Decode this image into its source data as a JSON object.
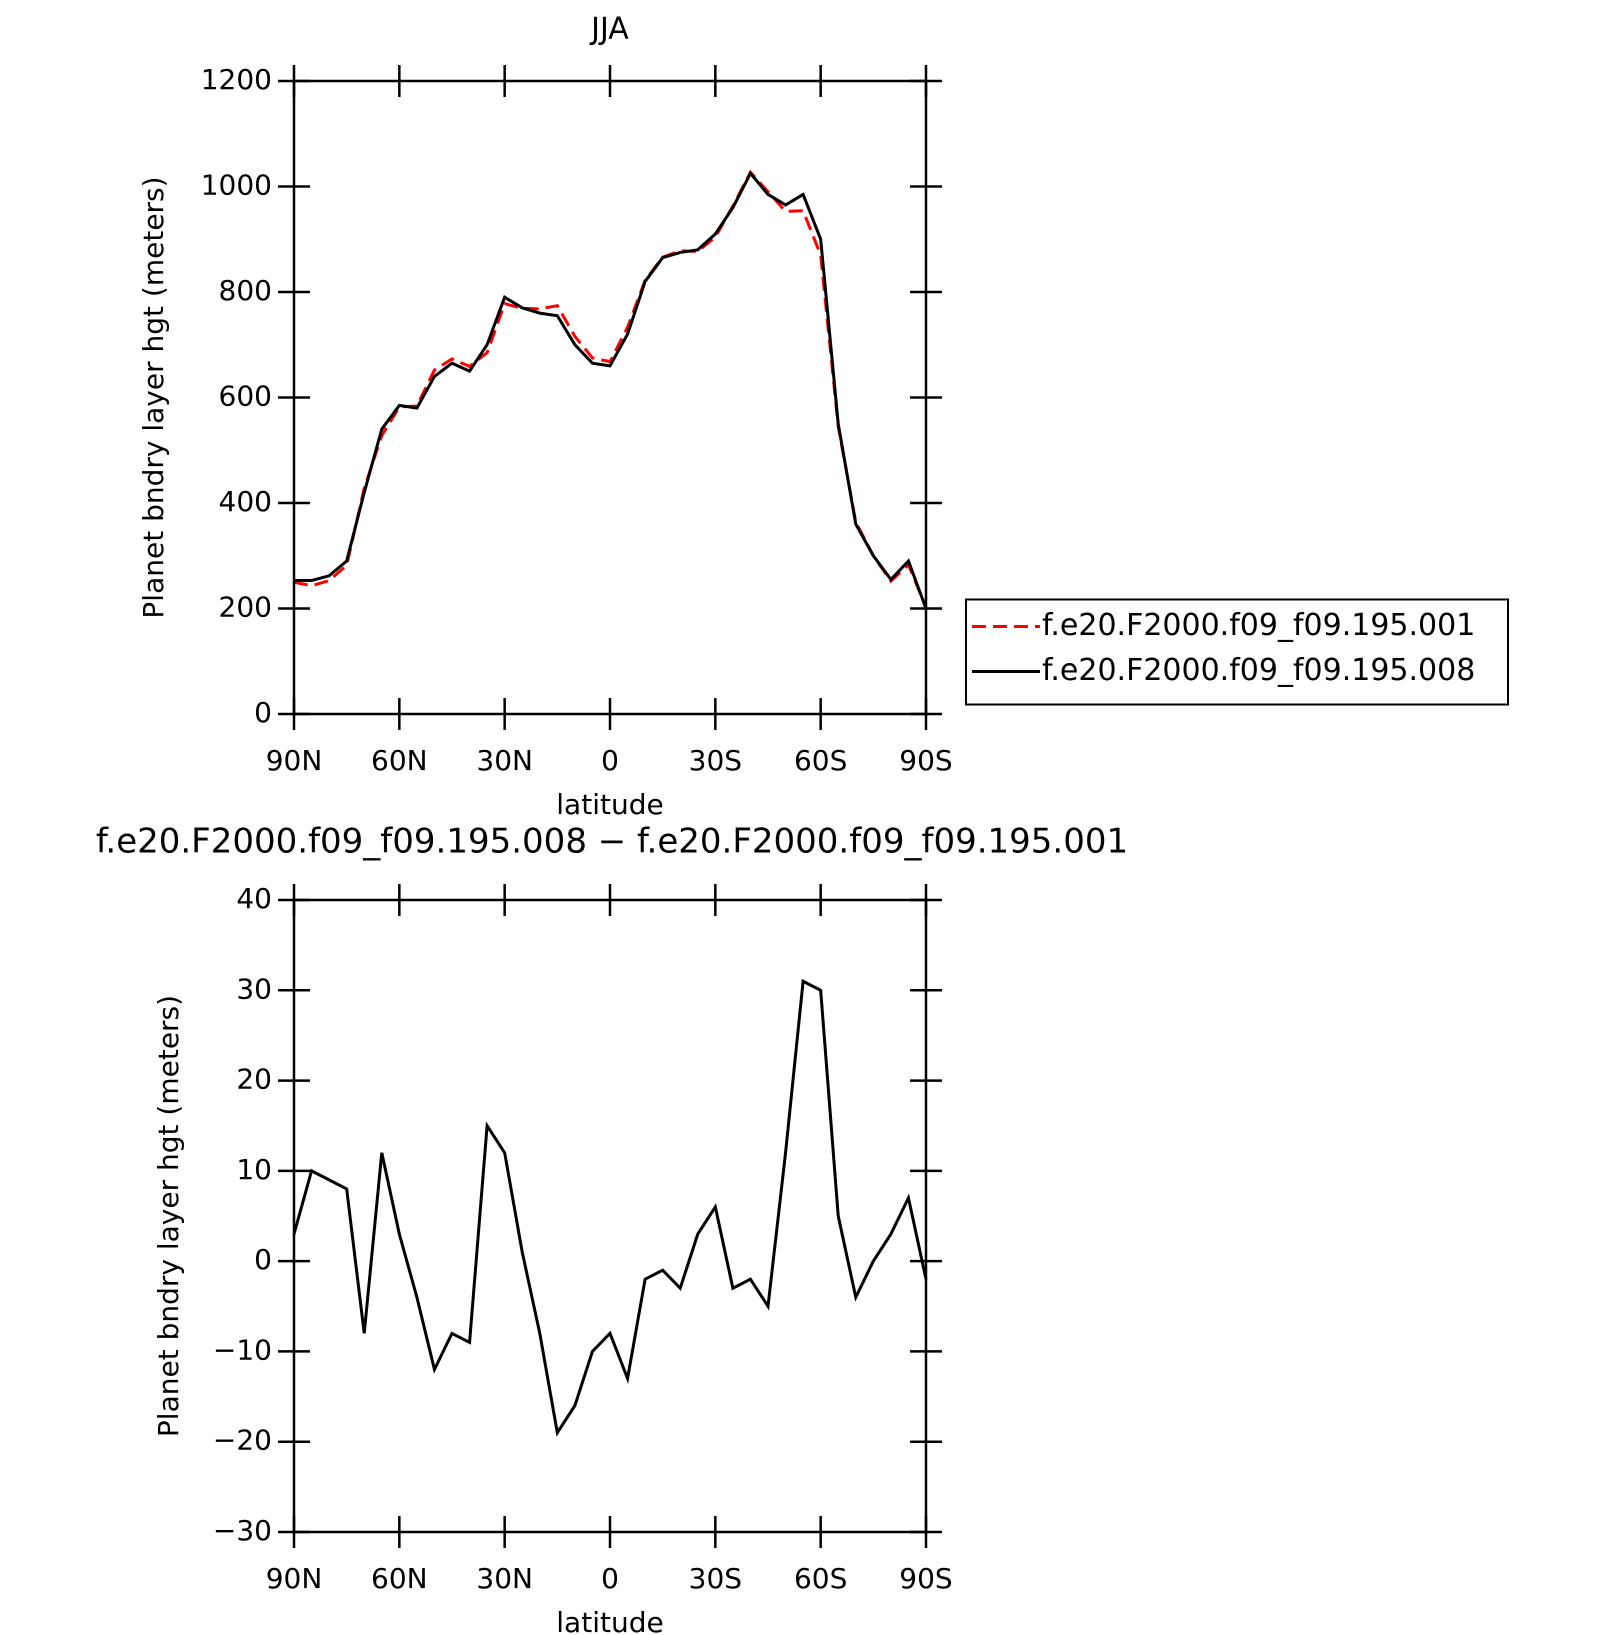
{
  "chart_data": [
    {
      "type": "line",
      "title": "JJA",
      "xlabel": "latitude",
      "ylabel": "Planet bndry layer hgt (meters)",
      "x": [
        90,
        85,
        80,
        75,
        70,
        65,
        60,
        55,
        50,
        45,
        40,
        35,
        30,
        25,
        20,
        15,
        10,
        5,
        0,
        -5,
        -10,
        -15,
        -20,
        -25,
        -30,
        -35,
        -40,
        -45,
        -50,
        -55,
        -60,
        -65,
        -70,
        -75,
        -80,
        -85,
        -90
      ],
      "series": [
        {
          "name": "f.e20.F2000.f09_f09.195.001",
          "color": "#ff0000",
          "line_style": "dashed",
          "values": [
            250,
            243,
            253,
            282,
            428,
            528,
            582,
            584,
            652,
            673,
            659,
            685,
            778,
            769,
            768,
            774,
            716,
            675,
            668,
            733,
            822,
            866,
            878,
            877,
            904,
            963,
            1027,
            990,
            953,
            954,
            870,
            545,
            364,
            300,
            252,
            283,
            202
          ]
        },
        {
          "name": "f.e20.F2000.f09_f09.195.008",
          "color": "#000000",
          "line_style": "solid",
          "values": [
            253,
            253,
            262,
            290,
            420,
            540,
            585,
            580,
            640,
            665,
            650,
            700,
            790,
            770,
            760,
            755,
            700,
            665,
            660,
            720,
            820,
            865,
            875,
            880,
            910,
            960,
            1025,
            985,
            965,
            985,
            900,
            550,
            360,
            300,
            255,
            290,
            200
          ]
        }
      ],
      "xlim": [
        90,
        -90
      ],
      "xticks": [
        {
          "value": 90,
          "label": "90N"
        },
        {
          "value": 60,
          "label": "60N"
        },
        {
          "value": 30,
          "label": "30N"
        },
        0,
        {
          "value": -30,
          "label": "30S"
        },
        {
          "value": -60,
          "label": "60S"
        },
        {
          "value": -90,
          "label": "90S"
        }
      ],
      "ylim": [
        0,
        1200
      ],
      "yticks": [
        0,
        200,
        400,
        600,
        800,
        1000,
        1200
      ],
      "legend": "right"
    },
    {
      "type": "line",
      "title": "f.e20.F2000.f09_f09.195.008 − f.e20.F2000.f09_f09.195.001",
      "xlabel": "latitude",
      "ylabel": "Planet bndry layer hgt (meters)",
      "x": [
        90,
        85,
        80,
        75,
        70,
        65,
        60,
        55,
        50,
        45,
        40,
        35,
        30,
        25,
        20,
        15,
        10,
        5,
        0,
        -5,
        -10,
        -15,
        -20,
        -25,
        -30,
        -35,
        -40,
        -45,
        -50,
        -55,
        -60,
        -65,
        -70,
        -75,
        -80,
        -85,
        -90
      ],
      "series": [
        {
          "color": "#000000",
          "line_style": "solid",
          "values": [
            3,
            10,
            9,
            8,
            -8,
            12,
            3,
            -4,
            -12,
            -8,
            -9,
            15,
            12,
            1,
            -8,
            -19,
            -16,
            -10,
            -8,
            -13,
            -2,
            -1,
            -3,
            3,
            6,
            -3,
            -2,
            -5,
            12,
            31,
            30,
            5,
            -4,
            0,
            3,
            7,
            -2
          ]
        }
      ],
      "xlim": [
        90,
        -90
      ],
      "xticks": [
        {
          "value": 90,
          "label": "90N"
        },
        {
          "value": 60,
          "label": "60N"
        },
        {
          "value": 30,
          "label": "30N"
        },
        0,
        {
          "value": -30,
          "label": "30S"
        },
        {
          "value": -60,
          "label": "60S"
        },
        {
          "value": -90,
          "label": "90S"
        }
      ],
      "ylim": [
        -30,
        40
      ],
      "yticks": [
        {
          "value": -30,
          "label": "−30"
        },
        {
          "value": -20,
          "label": "−20"
        },
        {
          "value": -10,
          "label": "−10"
        },
        0,
        10,
        20,
        30,
        40
      ]
    }
  ]
}
